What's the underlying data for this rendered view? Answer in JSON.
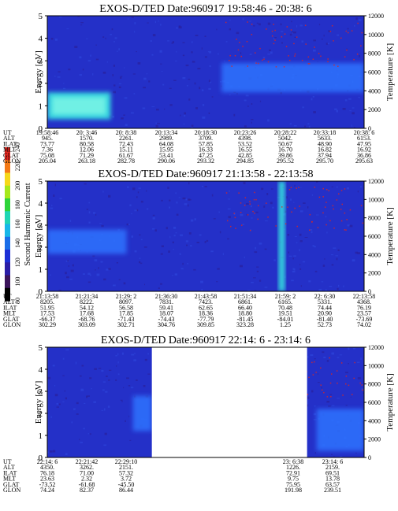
{
  "colorbar": {
    "label": "Second Harmonic Current",
    "ticks": [
      "80",
      "100",
      "120",
      "140",
      "160",
      "180",
      "200",
      "220",
      "240"
    ]
  },
  "chart_data": [
    {
      "type": "heatmap",
      "title": "EXOS-D/TED   Date:960917  19:58:46 - 20:38: 6",
      "ylabel": "Energy [eV]",
      "y2label": "Temperature [K]",
      "ylim": [
        0,
        5
      ],
      "y2lim": [
        0,
        12000
      ],
      "yticks": [
        "0",
        "1",
        "2",
        "3",
        "4",
        "5"
      ],
      "y2ticks": [
        "0",
        "2000",
        "4000",
        "6000",
        "8000",
        "10000",
        "12000"
      ],
      "row_labels": [
        "UT",
        "ALT",
        "ILAT",
        "MLT",
        "GLAT",
        "GLON"
      ],
      "columns": [
        [
          "19:58:46",
          "945.",
          "73.77",
          "7.36",
          "75.08",
          "205.04"
        ],
        [
          "20: 3:46",
          "1570.",
          "80.58",
          "12.06",
          "71.29",
          "263.18"
        ],
        [
          "20: 8:38",
          "2261.",
          "72.43",
          "15.11",
          "61.67",
          "282.78"
        ],
        [
          "20:13:34",
          "2989.",
          "64.08",
          "15.95",
          "53.41",
          "290.06"
        ],
        [
          "20:18:30",
          "3709.",
          "57.85",
          "16.33",
          "47.25",
          "293.32"
        ],
        [
          "20:23:26",
          "4398.",
          "53.52",
          "16.55",
          "42.85",
          "294.85"
        ],
        [
          "20:28:22",
          "5042.",
          "50.67",
          "16.70",
          "39.86",
          "295.52"
        ],
        [
          "20:33:18",
          "5633.",
          "48.90",
          "16.82",
          "37.94",
          "295.70"
        ],
        [
          "20:38: 6",
          "6153.",
          "47.95",
          "16.92",
          "36.86",
          "295.63"
        ]
      ],
      "features": [
        {
          "t0": 0.0,
          "t1": 0.2,
          "e0": 0.4,
          "e1": 1.6,
          "level": "high"
        },
        {
          "t0": 0.55,
          "t1": 1.0,
          "e0": 1.6,
          "e1": 2.9,
          "level": "medium"
        }
      ]
    },
    {
      "type": "heatmap",
      "title": "EXOS-D/TED   Date:960917  21:13:58 - 22:13:58",
      "ylabel": "Energy [eV]",
      "y2label": "Temperature [K]",
      "ylim": [
        0,
        5
      ],
      "y2lim": [
        0,
        12000
      ],
      "yticks": [
        "0",
        "1",
        "2",
        "3",
        "4",
        "5"
      ],
      "y2ticks": [
        "0",
        "2000",
        "4000",
        "6000",
        "8000",
        "10000",
        "12000"
      ],
      "row_labels": [
        "UT",
        "ALT",
        "ILAT",
        "MLT",
        "GLAT",
        "GLON"
      ],
      "columns": [
        [
          "21:13:58",
          "8205.",
          "51.95",
          "17.53",
          "-66.37",
          "302.29"
        ],
        [
          "21:21:34",
          "8222.",
          "54.12",
          "17.68",
          "-68.76",
          "303.09"
        ],
        [
          "21:29: 2",
          "8097.",
          "56.58",
          "17.85",
          "-71.43",
          "302.71"
        ],
        [
          "21:36:30",
          "7831.",
          "59.41",
          "18.07",
          "-74.43",
          "304.76"
        ],
        [
          "21:43:58",
          "7423.",
          "62.65",
          "18.36",
          "-77.79",
          "309.85"
        ],
        [
          "21:51:34",
          "6861.",
          "66.40",
          "18.80",
          "-81.45",
          "323.28"
        ],
        [
          "21:59: 2",
          "6165.",
          "70.48",
          "19.51",
          "-84.01",
          "1.25"
        ],
        [
          "22: 6:30",
          "5331.",
          "74.44",
          "20.90",
          "-81.40",
          "52.73"
        ],
        [
          "22:13:58",
          "4368.",
          "76.19",
          "23.57",
          "-73.69",
          "74.02"
        ]
      ],
      "features": [
        {
          "t0": 0.0,
          "t1": 0.25,
          "e0": 1.7,
          "e1": 2.8,
          "level": "medium"
        },
        {
          "t0": 0.73,
          "t1": 0.75,
          "e0": 0.0,
          "e1": 5.0,
          "level": "high"
        }
      ]
    },
    {
      "type": "heatmap",
      "title": "EXOS-D/TED   Date:960917  22:14: 6 - 23:14: 6",
      "ylabel": "Energy [eV]",
      "y2label": "Temperature [K]",
      "ylim": [
        0,
        5
      ],
      "y2lim": [
        0,
        12000
      ],
      "yticks": [
        "0",
        "1",
        "2",
        "3",
        "4",
        "5"
      ],
      "y2ticks": [
        "0",
        "2000",
        "4000",
        "6000",
        "8000",
        "10000",
        "12000"
      ],
      "row_labels": [
        "UT",
        "ALT",
        "ILAT",
        "MLT",
        "GLAT",
        "GLON"
      ],
      "columns": [
        [
          "22:14: 6",
          "4350.",
          "76.18",
          "23.63",
          "-73.52",
          "74.24"
        ],
        [
          "22:21:42",
          "3262.",
          "71.00",
          "2.32",
          "-61.68",
          "82.37"
        ],
        [
          "22:29:10",
          "2151.",
          "57.32",
          "3.72",
          "-45.50",
          "86.44"
        ],
        [
          "23: 6:38",
          "1226.",
          "72.91",
          "9.75",
          "75.95",
          "191.98"
        ],
        [
          "23:14: 6",
          "2159.",
          "69.51",
          "13.78",
          "63.57",
          "239.51"
        ]
      ],
      "gap": [
        0.33,
        0.82
      ],
      "features": [
        {
          "t0": 0.27,
          "t1": 0.33,
          "e0": 1.2,
          "e1": 2.8,
          "level": "medium"
        },
        {
          "t0": 0.85,
          "t1": 1.0,
          "e0": 0.3,
          "e1": 2.2,
          "level": "medium"
        }
      ]
    }
  ]
}
